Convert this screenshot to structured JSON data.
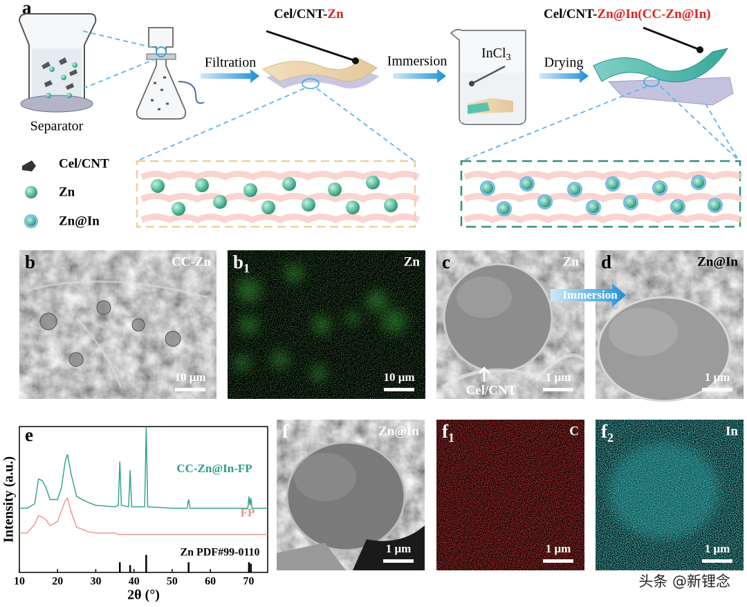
{
  "panel_a": {
    "label": "a",
    "separator": "Separator",
    "step1": "Filtration",
    "product1": {
      "prefix": "Cel/CNT-",
      "highlight": "Zn"
    },
    "step2": "Immersion",
    "reagent": {
      "main": "InCl",
      "sub": "3"
    },
    "step3": "Drying",
    "product2": {
      "prefix": "Cel/CNT-",
      "highlight": "Zn@In(CC-Zn@In)"
    },
    "legend": [
      "Cel/CNT",
      "Zn",
      "Zn@In"
    ]
  },
  "panel_b": {
    "label": "b",
    "title": "CC-Zn",
    "scale": "10 μm"
  },
  "panel_b1": {
    "label": "b",
    "label_sub": "1",
    "title": "Zn",
    "scale": "10 μm"
  },
  "panel_c": {
    "label": "c",
    "title": "Zn",
    "scale": "1 μm",
    "annotation": "Cel/CNT"
  },
  "panel_d": {
    "label": "d",
    "title": "Zn@In",
    "arrow": "Immersion",
    "scale": "1 μm"
  },
  "panel_f": {
    "label": "f",
    "title": "Zn@In",
    "scale": "1 μm"
  },
  "panel_f1": {
    "label": "f",
    "label_sub": "1",
    "title": "C",
    "scale": "1 μm"
  },
  "panel_f2": {
    "label": "f",
    "label_sub": "2",
    "title": "In",
    "scale": "1 μm"
  },
  "watermark": "头条 @新锂念",
  "chart_data": {
    "type": "line",
    "panel_label": "e",
    "xlabel": "2θ (°)",
    "ylabel": "Intensity (a.u.)",
    "xlim": [
      10,
      75
    ],
    "xticks": [
      10,
      20,
      30,
      40,
      50,
      60,
      70
    ],
    "ylim": [
      0,
      100
    ],
    "x": [
      10,
      12,
      14,
      15,
      16,
      17,
      18,
      20,
      21,
      22,
      22.6,
      23.5,
      25,
      28,
      30,
      35,
      35.9,
      36.3,
      36.7,
      38.6,
      39,
      39.4,
      42.8,
      43.2,
      43.6,
      50,
      53.9,
      54.3,
      54.7,
      60,
      69.8,
      70.1,
      70.35,
      70.6,
      70.9,
      75
    ],
    "series": [
      {
        "name": "CC-Zn@In-FP",
        "color": "#2a9d8a",
        "values": [
          44,
          44,
          47,
          64,
          63,
          58,
          50,
          50,
          58,
          76,
          81,
          68,
          52,
          48,
          46,
          45,
          46,
          76,
          46,
          45,
          70,
          45,
          45,
          100,
          45,
          44,
          44,
          50,
          44,
          44,
          44,
          52,
          46,
          51,
          44,
          44
        ]
      },
      {
        "name": "FP",
        "color": "#e8928a",
        "values": [
          27,
          27,
          33,
          39,
          38,
          36,
          32,
          35,
          42,
          49,
          51,
          42,
          31,
          28,
          27,
          27,
          26,
          26,
          26,
          26,
          26,
          26,
          26,
          26,
          26,
          26,
          26,
          26,
          26,
          26,
          26,
          26,
          26,
          26,
          26,
          26
        ]
      }
    ],
    "reference": {
      "name": "Zn PDF#99-0110",
      "color": "#000000",
      "x": [
        36.3,
        39.0,
        43.2,
        54.3,
        70.1,
        70.6
      ],
      "values": [
        7,
        5,
        12,
        7,
        7,
        6
      ]
    }
  }
}
